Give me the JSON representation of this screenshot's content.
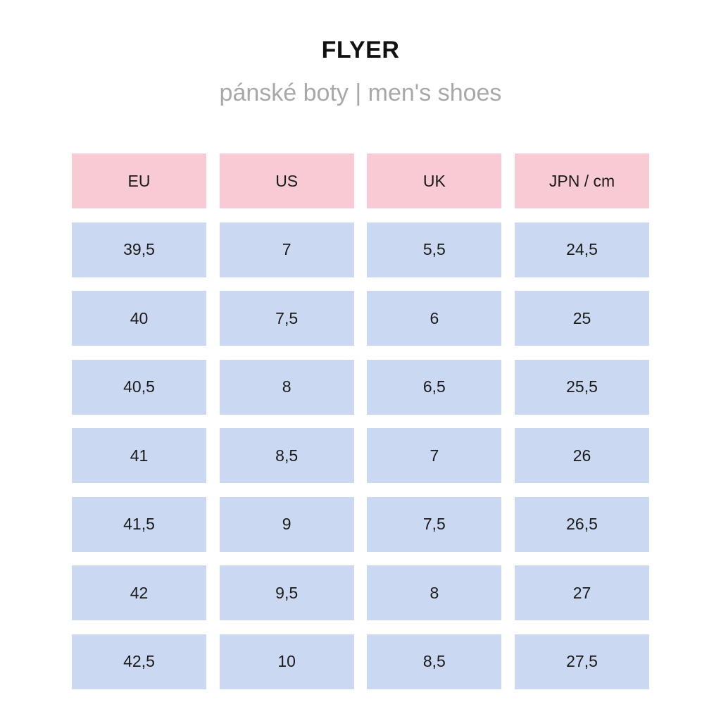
{
  "header": {
    "title": "FLYER",
    "subtitle": "pánské boty | men's shoes"
  },
  "colors": {
    "header_cell": "#f8cbd4",
    "body_cell": "#cad8f2",
    "subtitle": "#a8a8a8"
  },
  "table": {
    "columns": [
      "EU",
      "US",
      "UK",
      "JPN / cm"
    ],
    "rows": [
      [
        "39,5",
        "7",
        "5,5",
        "24,5"
      ],
      [
        "40",
        "7,5",
        "6",
        "25"
      ],
      [
        "40,5",
        "8",
        "6,5",
        "25,5"
      ],
      [
        "41",
        "8,5",
        "7",
        "26"
      ],
      [
        "41,5",
        "9",
        "7,5",
        "26,5"
      ],
      [
        "42",
        "9,5",
        "8",
        "27"
      ],
      [
        "42,5",
        "10",
        "8,5",
        "27,5"
      ]
    ]
  }
}
